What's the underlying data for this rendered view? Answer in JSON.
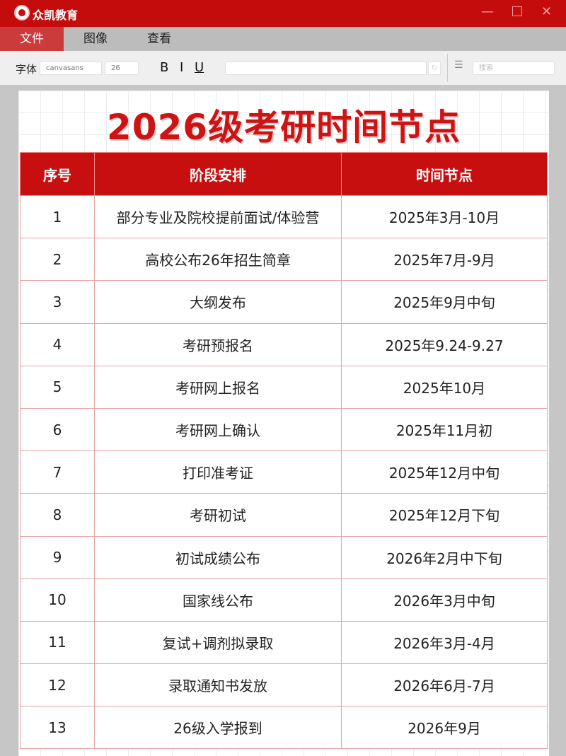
{
  "app": {
    "title": "众凯教育"
  },
  "menu": [
    "文件",
    "图像",
    "查看"
  ],
  "toolbar": {
    "font_label": "字体",
    "font_value": "canvasans",
    "size_value": "26",
    "bold": "B",
    "italic": "I",
    "underline": "U",
    "search_placeholder": "搜索"
  },
  "document": {
    "title": "2026级考研时间节点",
    "headers": [
      "序号",
      "阶段安排",
      "时间节点"
    ],
    "rows": [
      [
        "1",
        "部分专业及院校提前面试/体验营",
        "2025年3月-10月"
      ],
      [
        "2",
        "高校公布26年招生简章",
        "2025年7月-9月"
      ],
      [
        "3",
        "大纲发布",
        "2025年9月中旬"
      ],
      [
        "4",
        "考研预报名",
        "2025年9.24-9.27"
      ],
      [
        "5",
        "考研网上报名",
        "2025年10月"
      ],
      [
        "6",
        "考研网上确认",
        "2025年11月初"
      ],
      [
        "7",
        "打印准考证",
        "2025年12月中旬"
      ],
      [
        "8",
        "考研初试",
        "2025年12月下旬"
      ],
      [
        "9",
        "初试成绩公布",
        "2026年2月中下旬"
      ],
      [
        "10",
        "国家线公布",
        "2026年3月中旬"
      ],
      [
        "11",
        "复试+调剂拟录取",
        "2026年3月-4月"
      ],
      [
        "12",
        "录取通知书发放",
        "2026年6月-7月"
      ],
      [
        "13",
        "26级入学报到",
        "2026年9月"
      ]
    ]
  },
  "colors": {
    "brand": "#c40c0c",
    "header": "#c80f0f"
  }
}
